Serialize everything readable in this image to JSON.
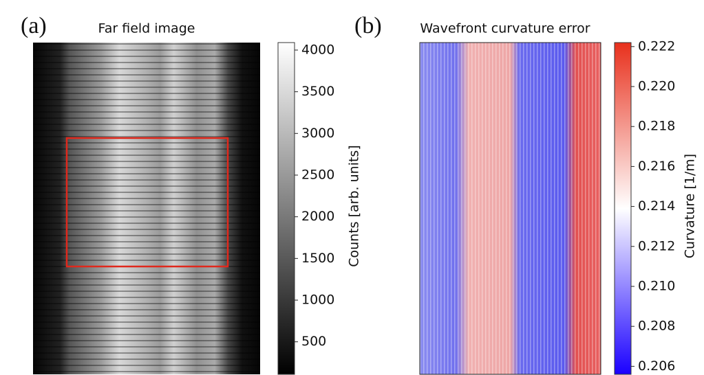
{
  "chart_data": [
    {
      "type": "heatmap",
      "panel_label": "(a)",
      "title": "Far field image",
      "colorbar": {
        "label": "Counts [arb. units]",
        "lim": [
          110,
          4090
        ],
        "ticks": [
          500,
          1000,
          1500,
          2000,
          2500,
          3000,
          3500,
          4000
        ],
        "colors": [
          "#000000",
          "#ffffff"
        ]
      }
    },
    {
      "type": "heatmap",
      "panel_label": "(b)",
      "title": "Wavefront curvature error",
      "colorbar": {
        "label": "Curvature [1/m]",
        "lim": [
          0.2056,
          0.2222
        ],
        "ticks": [
          {
            "value": 0.206,
            "label": "0.206"
          },
          {
            "value": 0.208,
            "label": "0.208"
          },
          {
            "value": 0.21,
            "label": "0.210"
          },
          {
            "value": 0.212,
            "label": "0.212"
          },
          {
            "value": 0.214,
            "label": "0.214"
          },
          {
            "value": 0.216,
            "label": "0.216"
          },
          {
            "value": 0.218,
            "label": "0.218"
          },
          {
            "value": 0.22,
            "label": "0.220"
          },
          {
            "value": 0.222,
            "label": "0.222"
          }
        ],
        "colors": [
          "#1a00ff",
          "#ffffff",
          "#e8301c"
        ]
      }
    }
  ]
}
